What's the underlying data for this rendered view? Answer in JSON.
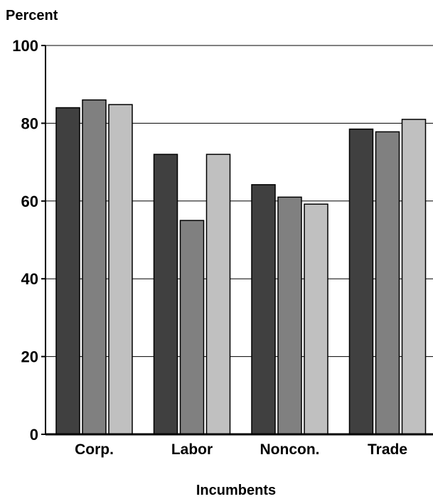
{
  "chart_data": {
    "type": "bar",
    "title": "",
    "ylabel": "Percent",
    "xlabel": "Incumbents",
    "categories": [
      "Corp.",
      "Labor",
      "Noncon.",
      "Trade"
    ],
    "series": [
      {
        "values": [
          84,
          72,
          64.2,
          78.5
        ],
        "color": "#404040"
      },
      {
        "values": [
          86,
          55,
          61,
          77.8
        ],
        "color": "#808080"
      },
      {
        "values": [
          84.8,
          72,
          59.2,
          81
        ],
        "color": "#c0c0c0"
      }
    ],
    "ylim": [
      0,
      100
    ],
    "yticks": [
      "0",
      "20",
      "40",
      "60",
      "80",
      "100"
    ],
    "grid": true
  }
}
